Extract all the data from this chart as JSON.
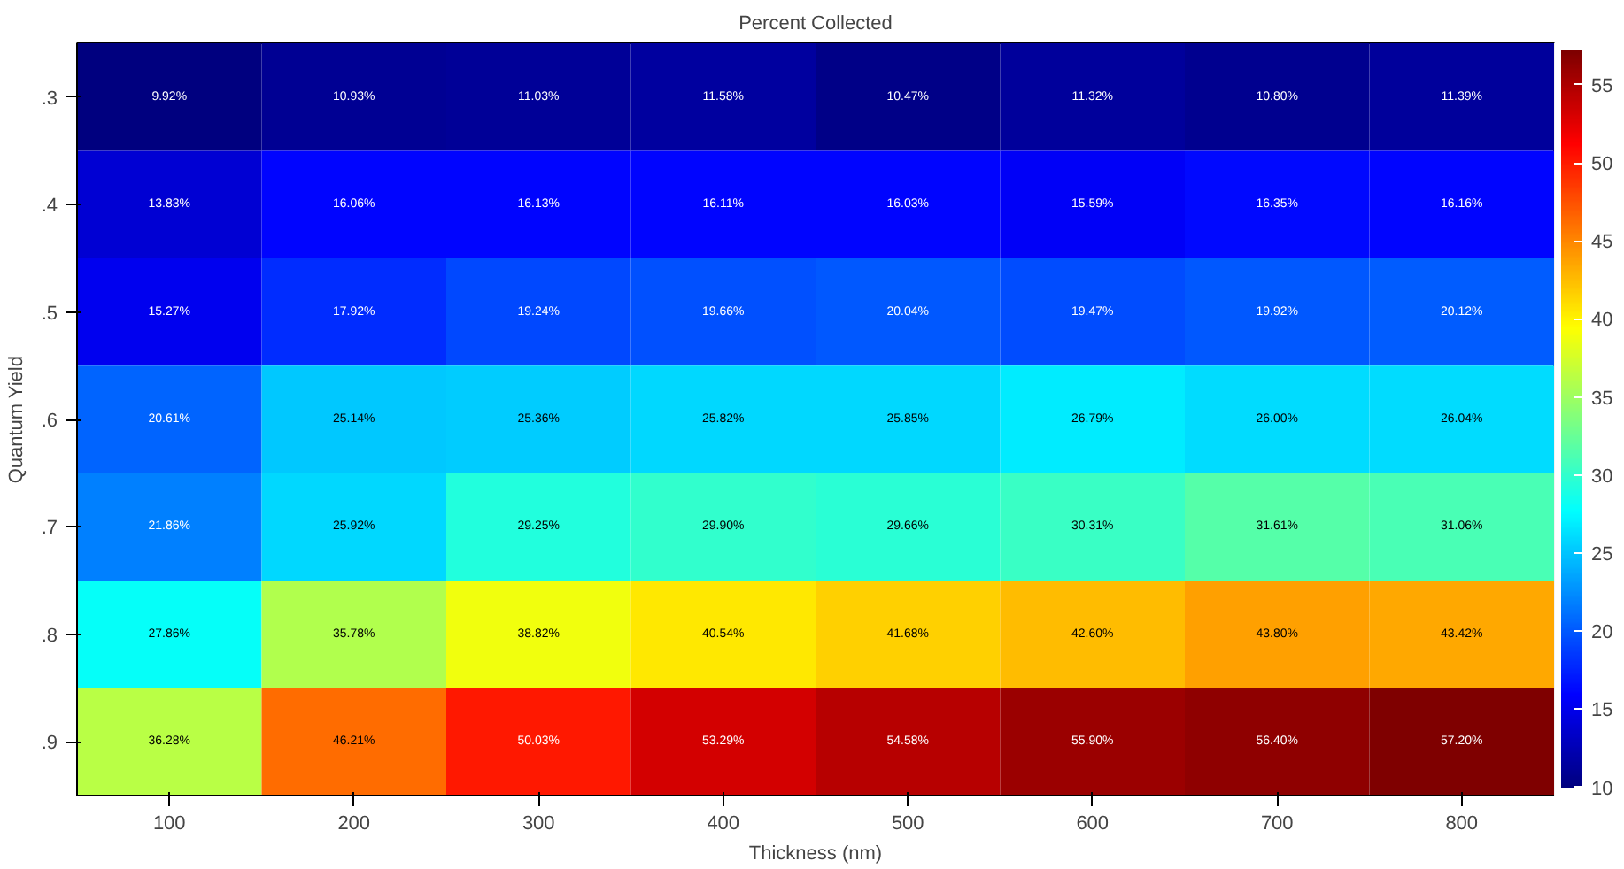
{
  "chart_data": {
    "type": "heatmap",
    "title": "Percent Collected",
    "xlabel": "Thickness (nm)",
    "ylabel": "Quantum Yield",
    "categories": [
      "100",
      "200",
      "300",
      "400",
      "500",
      "600",
      "700",
      "800"
    ],
    "y_categories": [
      ".3",
      ".4",
      ".5",
      ".6",
      ".7",
      ".8",
      ".9"
    ],
    "cells": [
      [
        9.92,
        10.93,
        11.03,
        11.58,
        10.47,
        11.32,
        10.8,
        11.39
      ],
      [
        13.83,
        16.06,
        16.13,
        16.11,
        16.03,
        15.59,
        16.35,
        16.16
      ],
      [
        15.27,
        17.92,
        19.24,
        19.66,
        20.04,
        19.47,
        19.92,
        20.12
      ],
      [
        20.61,
        25.14,
        25.36,
        25.82,
        25.85,
        26.79,
        26.0,
        26.04
      ],
      [
        21.86,
        25.92,
        29.25,
        29.9,
        29.66,
        30.31,
        31.61,
        31.06
      ],
      [
        27.86,
        35.78,
        38.82,
        40.54,
        41.68,
        42.6,
        43.8,
        43.42
      ],
      [
        36.28,
        46.21,
        50.03,
        53.29,
        54.58,
        55.9,
        56.4,
        57.2
      ]
    ],
    "cell_labels": [
      [
        "9.92%",
        "10.93%",
        "11.03%",
        "11.58%",
        "10.47%",
        "11.32%",
        "10.80%",
        "11.39%"
      ],
      [
        "13.83%",
        "16.06%",
        "16.13%",
        "16.11%",
        "16.03%",
        "15.59%",
        "16.35%",
        "16.16%"
      ],
      [
        "15.27%",
        "17.92%",
        "19.24%",
        "19.66%",
        "20.04%",
        "19.47%",
        "19.92%",
        "20.12%"
      ],
      [
        "20.61%",
        "25.14%",
        "25.36%",
        "25.82%",
        "25.85%",
        "26.79%",
        "26.00%",
        "26.04%"
      ],
      [
        "21.86%",
        "25.92%",
        "29.25%",
        "29.90%",
        "29.66%",
        "30.31%",
        "31.61%",
        "31.06%"
      ],
      [
        "27.86%",
        "35.78%",
        "38.82%",
        "40.54%",
        "41.68%",
        "42.60%",
        "43.80%",
        "43.42%"
      ],
      [
        "36.28%",
        "46.21%",
        "50.03%",
        "53.29%",
        "54.58%",
        "55.90%",
        "56.40%",
        "57.20%"
      ]
    ],
    "clim": [
      9.92,
      57.2
    ],
    "cticks": [
      10,
      15,
      20,
      25,
      30,
      35,
      40,
      45,
      50,
      55
    ]
  }
}
